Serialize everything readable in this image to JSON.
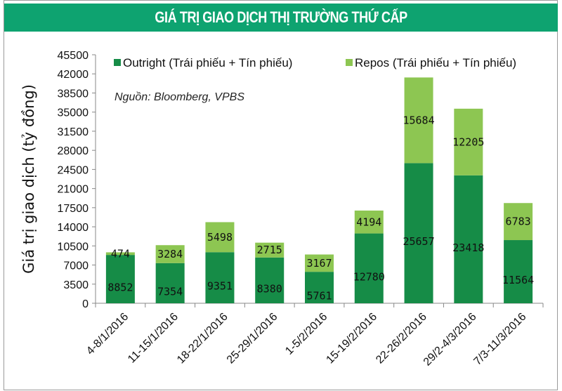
{
  "header": {
    "title": "GIÁ TRỊ GIAO DỊCH THỊ TRƯỜNG THỨ CẤP"
  },
  "chart_data": {
    "type": "bar",
    "stacked": true,
    "title": "GIÁ TRỊ GIAO DỊCH THỊ TRƯỜNG THỨ CẤP",
    "source": "Nguồn: Bloomberg, VPBS",
    "ylabel": "Giá trị giao dịch (tỷ đồng)",
    "xlabel": "",
    "ylim": [
      0,
      45500
    ],
    "yticks": [
      0,
      3500,
      7000,
      10500,
      14000,
      17500,
      21000,
      24500,
      28000,
      31500,
      35000,
      38500,
      42000,
      45500
    ],
    "grid": false,
    "legend_position": "top",
    "categories": [
      "4-8/1/2016",
      "11-15/1/2016",
      "18-22/1/2016",
      "25-29/1/2016",
      "1-5/2/2016",
      "15-19/2/2016",
      "22-26/2/2016",
      "29/2-4/3/2016",
      "7/3-11/3/2016"
    ],
    "series": [
      {
        "name": "Outright (Trái phiếu + Tín phiếu)",
        "color": "#168c47",
        "values": [
          8852,
          7354,
          9351,
          8380,
          5761,
          12780,
          25657,
          23418,
          11564
        ]
      },
      {
        "name": "Repos (Trái phiếu + Tín phiếu)",
        "color": "#8dc652",
        "values": [
          474,
          3284,
          5498,
          2715,
          3167,
          4194,
          15684,
          12205,
          6783
        ]
      }
    ]
  }
}
